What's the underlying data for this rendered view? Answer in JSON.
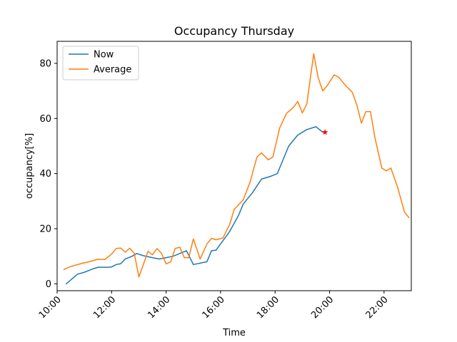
{
  "chart_data": {
    "type": "line",
    "title": "Occupancy Thursday",
    "xlabel": "Time",
    "ylabel": "occupancy[%]",
    "xlim": [
      "10:00",
      "23:00"
    ],
    "ylim": [
      -2.5,
      88
    ],
    "x_ticks": [
      "10:00",
      "12:00",
      "14:00",
      "16:00",
      "18:00",
      "20:00",
      "22:00"
    ],
    "y_ticks": [
      0,
      20,
      40,
      60,
      80
    ],
    "grid": false,
    "legend": "top-left",
    "series": [
      {
        "name": "Now",
        "color": "#1f77b4",
        "points": [
          [
            "10:20",
            0
          ],
          [
            "10:45",
            3.5
          ],
          [
            "11:00",
            4.2
          ],
          [
            "11:20",
            5.5
          ],
          [
            "11:30",
            6
          ],
          [
            "11:50",
            6
          ],
          [
            "12:00",
            6.1
          ],
          [
            "12:10",
            7
          ],
          [
            "12:20",
            7.3
          ],
          [
            "12:30",
            9
          ],
          [
            "12:45",
            10
          ],
          [
            "12:55",
            11
          ],
          [
            "13:10",
            10.2
          ],
          [
            "13:30",
            9.5
          ],
          [
            "13:45",
            9
          ],
          [
            "14:00",
            9.5
          ],
          [
            "14:15",
            10
          ],
          [
            "14:30",
            11
          ],
          [
            "14:45",
            12
          ],
          [
            "15:00",
            7
          ],
          [
            "15:30",
            8
          ],
          [
            "15:40",
            12
          ],
          [
            "15:50",
            12.2
          ],
          [
            "16:00",
            14.5
          ],
          [
            "16:20",
            19
          ],
          [
            "16:40",
            25
          ],
          [
            "16:50",
            29
          ],
          [
            "17:10",
            33
          ],
          [
            "17:30",
            38
          ],
          [
            "17:50",
            39
          ],
          [
            "18:05",
            40
          ],
          [
            "18:30",
            50
          ],
          [
            "18:50",
            54
          ],
          [
            "19:10",
            56
          ],
          [
            "19:30",
            57
          ],
          [
            "19:45",
            55
          ]
        ]
      },
      {
        "name": "Average",
        "color": "#ff7f0e",
        "points": [
          [
            "10:15",
            5.2
          ],
          [
            "10:30",
            6.3
          ],
          [
            "10:50",
            7.2
          ],
          [
            "11:10",
            8
          ],
          [
            "11:30",
            8.9
          ],
          [
            "11:45",
            8.8
          ],
          [
            "12:00",
            10.8
          ],
          [
            "12:10",
            12.8
          ],
          [
            "12:20",
            13
          ],
          [
            "12:30",
            11.5
          ],
          [
            "12:40",
            12.9
          ],
          [
            "12:50",
            11
          ],
          [
            "13:00",
            2.5
          ],
          [
            "13:10",
            7
          ],
          [
            "13:20",
            11.8
          ],
          [
            "13:30",
            10.5
          ],
          [
            "13:40",
            12.8
          ],
          [
            "13:50",
            11
          ],
          [
            "14:00",
            7.2
          ],
          [
            "14:10",
            8
          ],
          [
            "14:20",
            12.8
          ],
          [
            "14:30",
            13.3
          ],
          [
            "14:40",
            9.5
          ],
          [
            "14:50",
            9.5
          ],
          [
            "15:00",
            16.3
          ],
          [
            "15:15",
            9
          ],
          [
            "15:30",
            14.5
          ],
          [
            "15:40",
            16.5
          ],
          [
            "15:50",
            16
          ],
          [
            "16:05",
            16.6
          ],
          [
            "16:20",
            21.5
          ],
          [
            "16:30",
            27
          ],
          [
            "16:50",
            30.5
          ],
          [
            "17:05",
            37
          ],
          [
            "17:20",
            46
          ],
          [
            "17:30",
            47.5
          ],
          [
            "17:45",
            45
          ],
          [
            "17:55",
            46
          ],
          [
            "18:10",
            56.5
          ],
          [
            "18:25",
            61.8
          ],
          [
            "18:40",
            64
          ],
          [
            "18:50",
            66.2
          ],
          [
            "19:00",
            62
          ],
          [
            "19:10",
            65.3
          ],
          [
            "19:25",
            83.5
          ],
          [
            "19:35",
            74.8
          ],
          [
            "19:45",
            70
          ],
          [
            "19:55",
            72
          ],
          [
            "20:10",
            75.8
          ],
          [
            "20:20",
            75
          ],
          [
            "20:35",
            72
          ],
          [
            "20:50",
            69.5
          ],
          [
            "21:00",
            65
          ],
          [
            "21:10",
            58.3
          ],
          [
            "21:20",
            62.5
          ],
          [
            "21:30",
            62.5
          ],
          [
            "21:40",
            53
          ],
          [
            "21:55",
            42
          ],
          [
            "22:05",
            41
          ],
          [
            "22:15",
            42
          ],
          [
            "22:30",
            35
          ],
          [
            "22:45",
            26
          ],
          [
            "22:55",
            24
          ]
        ]
      }
    ],
    "markers": [
      {
        "time": "19:50",
        "value": 55,
        "color": "#ff0000",
        "shape": "star"
      }
    ]
  }
}
